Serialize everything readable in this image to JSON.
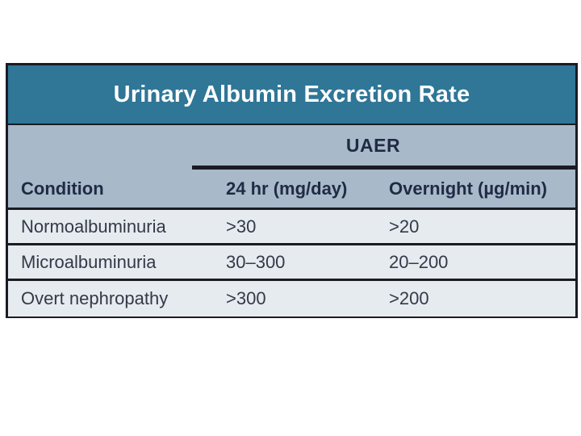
{
  "page": {
    "background": "#FFFFFF"
  },
  "table": {
    "title": "Urinary Albumin Excretion Rate",
    "group_header": "UAER",
    "columns": [
      "Condition",
      "24 hr (mg/day)",
      "Overnight (µg/min)"
    ],
    "rows": [
      {
        "condition": "Normoalbuminuria",
        "per24hr": ">30",
        "overnight": ">20"
      },
      {
        "condition": "Microalbuminuria",
        "per24hr": "30–300",
        "overnight": "20–200"
      },
      {
        "condition": "Overt nephropathy",
        "per24hr": ">300",
        "overnight": ">200"
      }
    ],
    "colors": {
      "title_band": "#2F7697",
      "header_band": "#A8B9C9",
      "row_band": "#E6EBF0",
      "border": "#1A1B24",
      "header_text": "#1F2B45",
      "row_text": "#333A47",
      "title_text": "#FFFFFF",
      "page_bg": "#FFFFFF"
    }
  }
}
